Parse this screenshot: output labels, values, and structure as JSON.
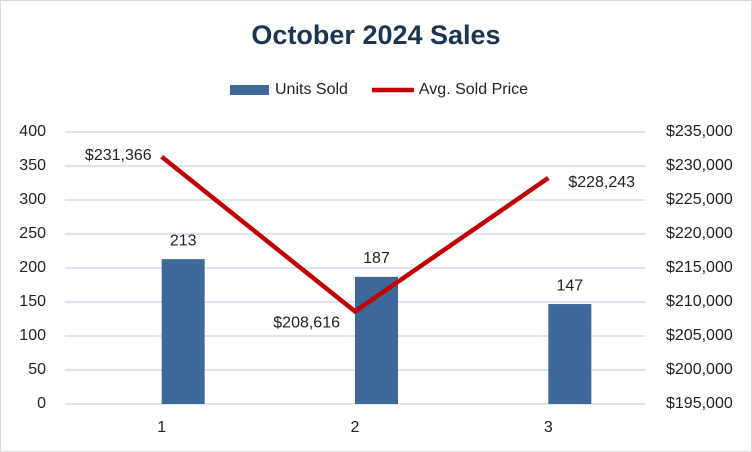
{
  "chart_data": {
    "type": "combo",
    "title": "October 2024 Sales",
    "categories": [
      "1",
      "2",
      "3"
    ],
    "series": [
      {
        "name": "Units Sold",
        "type": "bar",
        "color": "#3e6897",
        "values": [
          213,
          187,
          147
        ]
      },
      {
        "name": "Avg. Sold Price",
        "type": "line",
        "color": "#c00000",
        "axis": "y2",
        "values": [
          231366,
          208616,
          228243
        ],
        "value_labels": [
          "$231,366",
          "$208,616",
          "$228,243"
        ]
      }
    ],
    "ylim": [
      0,
      400
    ],
    "yticks": [
      0,
      50,
      100,
      150,
      200,
      250,
      300,
      350,
      400
    ],
    "y2lim": [
      195000,
      235000
    ],
    "y2ticks": [
      {
        "value": 195000,
        "label": "$195,000"
      },
      {
        "value": 200000,
        "label": "$200,000"
      },
      {
        "value": 205000,
        "label": "$205,000"
      },
      {
        "value": 210000,
        "label": "$210,000"
      },
      {
        "value": 215000,
        "label": "$215,000"
      },
      {
        "value": 220000,
        "label": "$220,000"
      },
      {
        "value": 225000,
        "label": "$225,000"
      },
      {
        "value": 230000,
        "label": "$230,000"
      },
      {
        "value": 235000,
        "label": "$235,000"
      }
    ],
    "grid": true,
    "legend": "top"
  }
}
